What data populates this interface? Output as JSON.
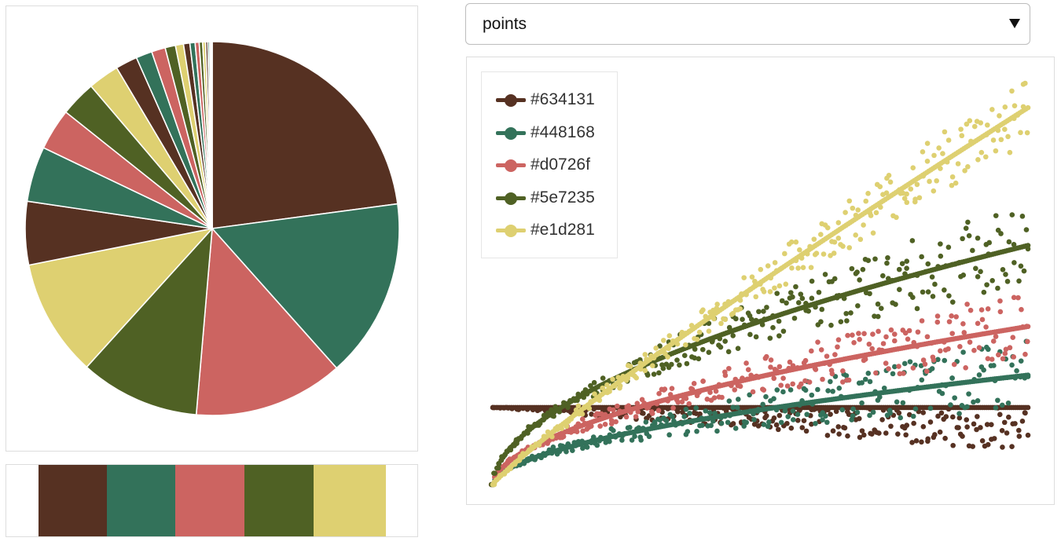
{
  "controls": {
    "mode_select": {
      "selected": "points"
    }
  },
  "palette": [
    "#563122",
    "#33725a",
    "#cc6461",
    "#4f6124",
    "#ded071"
  ],
  "legend": {
    "items": [
      {
        "label": "#634131",
        "color": "#563122"
      },
      {
        "label": "#448168",
        "color": "#33725a"
      },
      {
        "label": "#d0726f",
        "color": "#cc6461"
      },
      {
        "label": "#5e7235",
        "color": "#4f6124"
      },
      {
        "label": "#e1d281",
        "color": "#ded071"
      }
    ]
  },
  "chart_data": [
    {
      "type": "pie",
      "title": "",
      "slices": [
        {
          "value": 23.0,
          "color": "#563122"
        },
        {
          "value": 15.6,
          "color": "#33725a"
        },
        {
          "value": 13.0,
          "color": "#cc6461"
        },
        {
          "value": 10.4,
          "color": "#4f6124"
        },
        {
          "value": 10.2,
          "color": "#ded071"
        },
        {
          "value": 5.5,
          "color": "#563122"
        },
        {
          "value": 4.8,
          "color": "#33725a"
        },
        {
          "value": 3.6,
          "color": "#cc6461"
        },
        {
          "value": 3.1,
          "color": "#4f6124"
        },
        {
          "value": 2.7,
          "color": "#ded071"
        },
        {
          "value": 1.9,
          "color": "#563122"
        },
        {
          "value": 1.4,
          "color": "#33725a"
        },
        {
          "value": 1.2,
          "color": "#cc6461"
        },
        {
          "value": 0.9,
          "color": "#4f6124"
        },
        {
          "value": 0.7,
          "color": "#ded071"
        },
        {
          "value": 0.55,
          "color": "#563122"
        },
        {
          "value": 0.45,
          "color": "#33725a"
        },
        {
          "value": 0.35,
          "color": "#cc6461"
        },
        {
          "value": 0.3,
          "color": "#4f6124"
        },
        {
          "value": 0.25,
          "color": "#ded071"
        },
        {
          "value": 0.2,
          "color": "#563122"
        },
        {
          "value": 0.15,
          "color": "#33725a"
        },
        {
          "value": 0.12,
          "color": "#cc6461"
        },
        {
          "value": 0.1,
          "color": "#4f6124"
        }
      ]
    },
    {
      "type": "scatter",
      "title": "",
      "xlabel": "",
      "ylabel": "",
      "xlim": [
        0,
        1
      ],
      "ylim": [
        0,
        1
      ],
      "grid": false,
      "legend_position": "top-left",
      "points_per_series": 260,
      "series": [
        {
          "name": "#634131",
          "color": "#563122",
          "trend": {
            "start": 0.19,
            "end": 0.19,
            "shape": "flat"
          },
          "spread_start": 0.0,
          "spread_end": 0.11,
          "spread_direction": "down"
        },
        {
          "name": "#448168",
          "color": "#33725a",
          "trend": {
            "start": 0.0,
            "end": 0.27,
            "shape": "sqrt"
          },
          "spread_start": 0.0,
          "spread_end": 0.09,
          "spread_direction": "both"
        },
        {
          "name": "#d0726f",
          "color": "#cc6461",
          "trend": {
            "start": 0.0,
            "end": 0.39,
            "shape": "sqrt"
          },
          "spread_start": 0.0,
          "spread_end": 0.09,
          "spread_direction": "both"
        },
        {
          "name": "#5e7235",
          "color": "#4f6124",
          "trend": {
            "start": 0.0,
            "end": 0.59,
            "shape": "sqrt"
          },
          "spread_start": 0.0,
          "spread_end": 0.11,
          "spread_direction": "both"
        },
        {
          "name": "#e1d281",
          "color": "#ded071",
          "trend": {
            "start": 0.0,
            "end": 0.93,
            "shape": "linear"
          },
          "spread_start": 0.0,
          "spread_end": 0.09,
          "spread_direction": "both"
        }
      ]
    }
  ]
}
